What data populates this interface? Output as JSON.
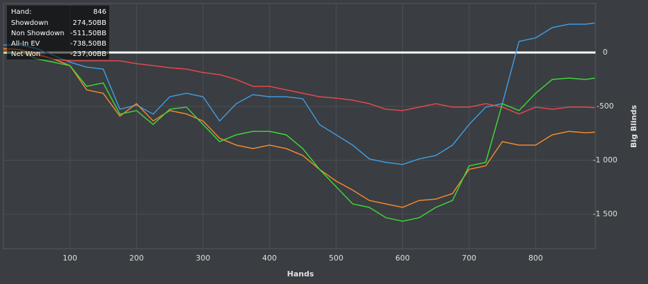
{
  "chart_data": {
    "type": "line",
    "x_label": "Hands",
    "y_label": "Big Blinds",
    "hand_label": "Hand:",
    "hand_count": 846,
    "x": [
      0,
      25,
      50,
      75,
      100,
      125,
      150,
      175,
      200,
      225,
      250,
      275,
      300,
      325,
      350,
      375,
      400,
      425,
      450,
      475,
      500,
      525,
      550,
      575,
      600,
      625,
      650,
      675,
      700,
      725,
      750,
      775,
      800,
      825,
      850,
      875,
      889
    ],
    "series": [
      {
        "name": "Showdown",
        "color": "#3f9be0",
        "end_label": "274,50BB",
        "values": [
          70,
          70,
          38,
          -26,
          -90,
          -135,
          -154,
          -526,
          -487,
          -571,
          -410,
          -378,
          -410,
          -635,
          -474,
          -391,
          -410,
          -410,
          -429,
          -667,
          -763,
          -859,
          -987,
          -1019,
          -1038,
          -987,
          -955,
          -859,
          -667,
          -506,
          -474,
          103,
          135,
          231,
          263,
          263,
          274.5
        ]
      },
      {
        "name": "Non Showdown",
        "color": "#e5484d",
        "end_label": "-511,50BB",
        "values": [
          26,
          -13,
          -26,
          -58,
          -77,
          -77,
          -77,
          -77,
          -103,
          -122,
          -141,
          -154,
          -186,
          -205,
          -250,
          -314,
          -314,
          -346,
          -378,
          -410,
          -423,
          -442,
          -474,
          -526,
          -538,
          -506,
          -474,
          -506,
          -506,
          -474,
          -506,
          -570,
          -506,
          -526,
          -506,
          -506,
          -511.5
        ]
      },
      {
        "name": "All-In EV",
        "color": "#f08a30",
        "end_label": "-738,50BB",
        "values": [
          38,
          26,
          -13,
          -58,
          -122,
          -346,
          -378,
          -590,
          -474,
          -635,
          -538,
          -570,
          -635,
          -795,
          -859,
          -891,
          -859,
          -891,
          -955,
          -1083,
          -1192,
          -1276,
          -1372,
          -1404,
          -1436,
          -1372,
          -1359,
          -1308,
          -1083,
          -1051,
          -827,
          -859,
          -859,
          -763,
          -731,
          -744,
          -738.5
        ]
      },
      {
        "name": "Net Won",
        "color": "#3ed63a",
        "end_label": "-237,00BB",
        "values": [
          6,
          6,
          -58,
          -90,
          -122,
          -314,
          -282,
          -571,
          -538,
          -667,
          -526,
          -506,
          -667,
          -827,
          -763,
          -731,
          -731,
          -763,
          -891,
          -1083,
          -1244,
          -1404,
          -1436,
          -1532,
          -1564,
          -1532,
          -1436,
          -1372,
          -1051,
          -1019,
          -474,
          -538,
          -378,
          -250,
          -237,
          -250,
          -237
        ]
      }
    ],
    "xlim": [
      0,
      890
    ],
    "ylim": [
      -1820,
      455
    ],
    "xticks": [
      100,
      200,
      300,
      400,
      500,
      600,
      700,
      800
    ],
    "yticks": [
      0,
      -500,
      {
        "value": -1000,
        "label": "-1 000"
      },
      {
        "value": -1500,
        "label": "-1 500"
      }
    ],
    "grid": true,
    "zero_line": true
  }
}
